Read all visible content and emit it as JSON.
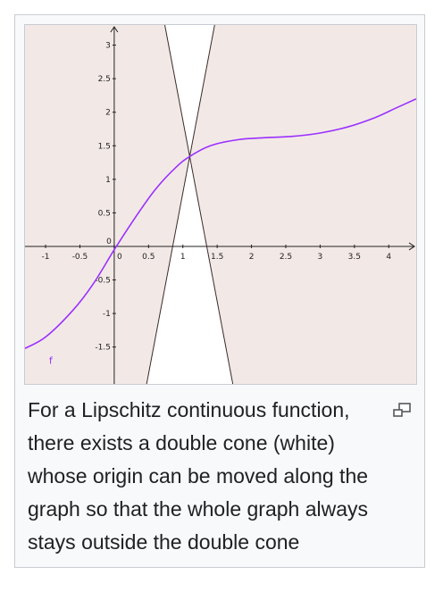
{
  "figure": {
    "caption": "For a Lipschitz continuous function, there exists a double cone (white) whose origin can be moved along the graph so that the whole graph always stays outside the double cone",
    "magnify_icon": "magnify-clip-icon",
    "colors": {
      "shaded_region": "#f2e9e6",
      "cone_lines": "#3a2a2a",
      "function_curve": "#9b30ff",
      "axes": "#222222",
      "frame_border": "#c8ccd1",
      "thumb_background": "#f8f9fa"
    }
  },
  "chart_data": {
    "type": "line",
    "title": "",
    "xlabel": "",
    "ylabel": "",
    "xlim": [
      -1.3,
      4.4
    ],
    "ylim": [
      -2.05,
      3.3
    ],
    "x_ticks": [
      "-1",
      "-0.5",
      "0",
      "0.5",
      "1",
      "1.5",
      "2",
      "2.5",
      "3",
      "3.5",
      "4"
    ],
    "y_ticks": [
      "-1.5",
      "-1",
      "-0.5",
      "0",
      "0.5",
      "1",
      "1.5",
      "2",
      "2.5",
      "3"
    ],
    "grid": false,
    "series": [
      {
        "name": "f",
        "x": [
          -1.3,
          -1.0,
          -0.6,
          -0.3,
          0.0,
          0.3,
          0.6,
          0.9,
          1.1,
          1.4,
          1.8,
          2.2,
          2.6,
          3.0,
          3.4,
          3.8,
          4.1,
          4.4
        ],
        "y": [
          -1.52,
          -1.35,
          -0.95,
          -0.55,
          -0.05,
          0.42,
          0.85,
          1.18,
          1.34,
          1.5,
          1.59,
          1.62,
          1.64,
          1.69,
          1.78,
          1.92,
          2.06,
          2.2
        ]
      }
    ],
    "cone": {
      "apex_x": 1.1,
      "apex_y": 1.34,
      "slope": 5.4,
      "region": "white"
    }
  }
}
